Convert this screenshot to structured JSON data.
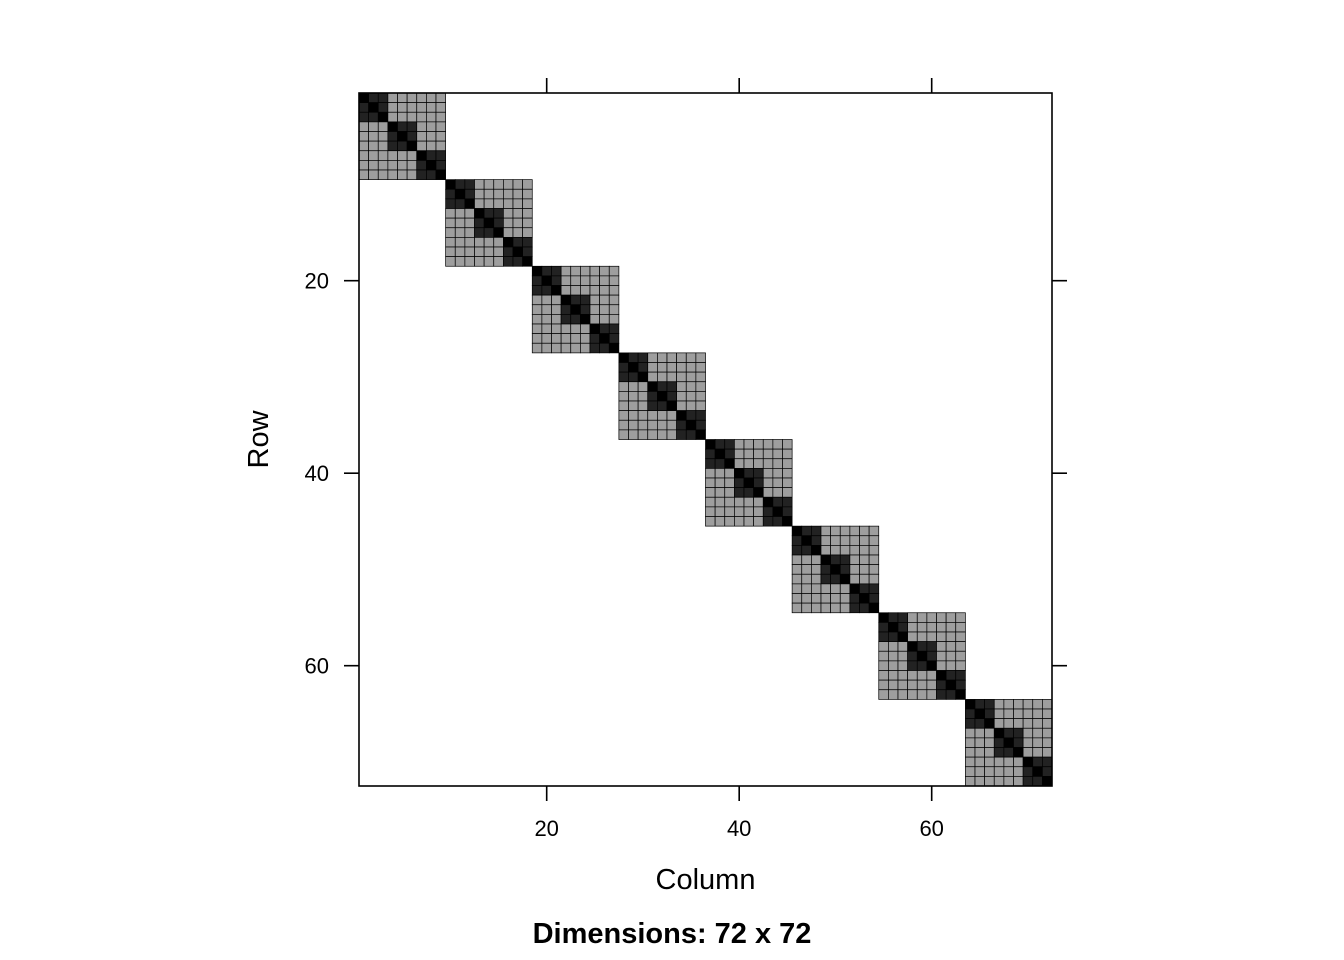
{
  "chart_data": {
    "type": "heatmap",
    "dimensions": [
      72,
      72
    ],
    "xlabel": "Column",
    "ylabel": "Row",
    "subtitle": "Dimensions: 72 x 72",
    "xlim": [
      0.5,
      72.5
    ],
    "ylim": [
      72.5,
      0.5
    ],
    "x_ticks": [
      20,
      40,
      60
    ],
    "y_ticks": [
      20,
      40,
      60
    ],
    "block_size": 9,
    "sub_block_size": 3,
    "block_starts": [
      1,
      10,
      19,
      28,
      37,
      46,
      55,
      64
    ],
    "levels": [
      {
        "name": "diagonal",
        "color": "#000000"
      },
      {
        "name": "within sub-block",
        "color": "#222222"
      },
      {
        "name": "within block",
        "color": "#9e9e9e"
      }
    ],
    "cell_border_color": "#000000",
    "grid": false
  }
}
